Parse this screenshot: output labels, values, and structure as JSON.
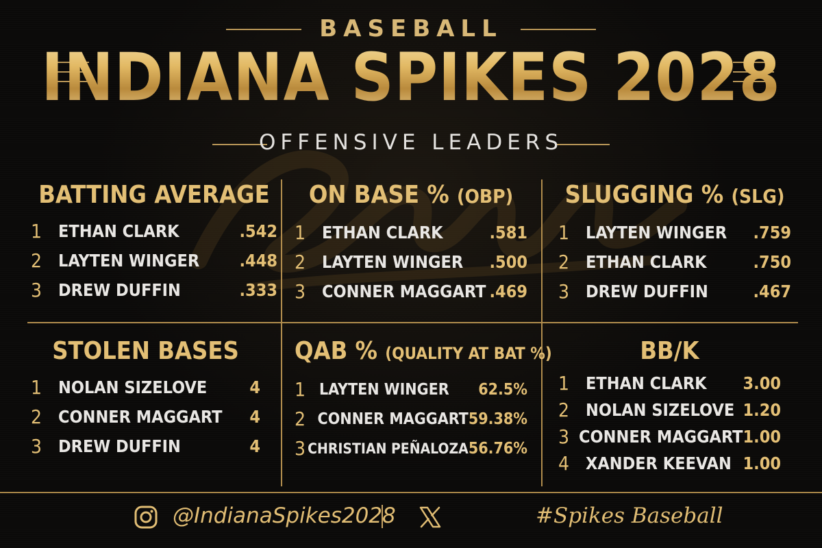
{
  "header": {
    "sport": "BASEBALL",
    "title": "INDIANA SPIKES 2028",
    "subtitle": "OFFENSIVE LEADERS"
  },
  "colors": {
    "gold": "#e3bf75",
    "background": "#0b0a09",
    "text": "#e9e7e4"
  },
  "panels": [
    {
      "title": "BATTING AVERAGE",
      "subtitle": "",
      "rows": [
        {
          "rank": "1",
          "name": "ETHAN CLARK",
          "value": ".542"
        },
        {
          "rank": "2",
          "name": "LAYTEN WINGER",
          "value": ".448"
        },
        {
          "rank": "3",
          "name": "DREW DUFFIN",
          "value": ".333"
        }
      ]
    },
    {
      "title": "ON BASE %",
      "subtitle": "(OBP)",
      "rows": [
        {
          "rank": "1",
          "name": "ETHAN CLARK",
          "value": ".581"
        },
        {
          "rank": "2",
          "name": "LAYTEN WINGER",
          "value": ".500"
        },
        {
          "rank": "3",
          "name": "CONNER MAGGART",
          "value": ".469"
        }
      ]
    },
    {
      "title": "SLUGGING %",
      "subtitle": "(SLG)",
      "rows": [
        {
          "rank": "1",
          "name": "LAYTEN WINGER",
          "value": ".759"
        },
        {
          "rank": "2",
          "name": "ETHAN CLARK",
          "value": ".750"
        },
        {
          "rank": "3",
          "name": "DREW DUFFIN",
          "value": ".467"
        }
      ]
    },
    {
      "title": "STOLEN BASES",
      "subtitle": "",
      "rows": [
        {
          "rank": "1",
          "name": "NOLAN SIZELOVE",
          "value": "4"
        },
        {
          "rank": "2",
          "name": "CONNER MAGGART",
          "value": "4"
        },
        {
          "rank": "3",
          "name": "DREW DUFFIN",
          "value": "4"
        }
      ]
    },
    {
      "title": "QAB %",
      "subtitle": "(QUALITY AT BAT %)",
      "rows": [
        {
          "rank": "1",
          "name": "LAYTEN WINGER",
          "value": "62.5%"
        },
        {
          "rank": "2",
          "name": "CONNER MAGGART",
          "value": "59.38%"
        },
        {
          "rank": "3",
          "name": "CHRISTIAN PEÑALOZA",
          "value": "56.76%"
        }
      ]
    },
    {
      "title": "BB/K",
      "subtitle": "",
      "rows": [
        {
          "rank": "1",
          "name": "ETHAN CLARK",
          "value": "3.00"
        },
        {
          "rank": "2",
          "name": "NOLAN SIZELOVE",
          "value": "1.20"
        },
        {
          "rank": "3",
          "name": "CONNER MAGGART",
          "value": "1.00"
        },
        {
          "rank": "4",
          "name": "XANDER KEEVAN",
          "value": "1.00"
        }
      ]
    }
  ],
  "footer": {
    "instagram_icon": "instagram-icon",
    "handle": "@IndianaSpikes2028",
    "x_icon": "x-icon",
    "hashtag": "#Spikes Baseball"
  }
}
